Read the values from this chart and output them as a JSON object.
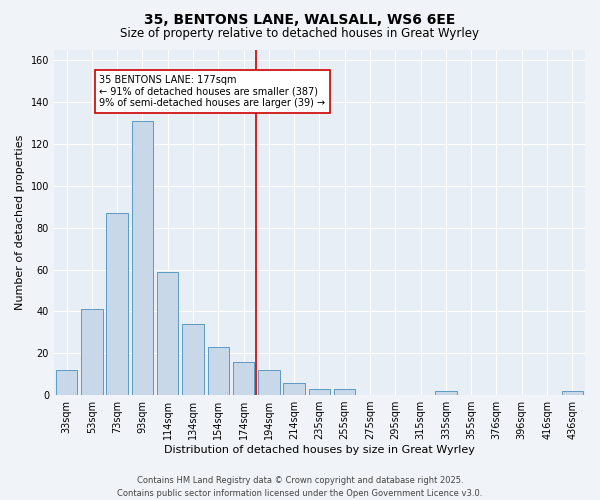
{
  "title": "35, BENTONS LANE, WALSALL, WS6 6EE",
  "subtitle": "Size of property relative to detached houses in Great Wyrley",
  "xlabel": "Distribution of detached houses by size in Great Wyrley",
  "ylabel": "Number of detached properties",
  "categories": [
    "33sqm",
    "53sqm",
    "73sqm",
    "93sqm",
    "114sqm",
    "134sqm",
    "154sqm",
    "174sqm",
    "194sqm",
    "214sqm",
    "235sqm",
    "255sqm",
    "275sqm",
    "295sqm",
    "315sqm",
    "335sqm",
    "355sqm",
    "376sqm",
    "396sqm",
    "416sqm",
    "436sqm"
  ],
  "values": [
    12,
    41,
    87,
    131,
    59,
    34,
    23,
    16,
    12,
    6,
    3,
    3,
    0,
    0,
    0,
    2,
    0,
    0,
    0,
    0,
    2
  ],
  "bar_color": "#c8d8e8",
  "bar_edge_color": "#5a9bc4",
  "vline_color": "#cc0000",
  "annotation_text": "35 BENTONS LANE: 177sqm\n← 91% of detached houses are smaller (387)\n9% of semi-detached houses are larger (39) →",
  "annotation_box_color": "#ffffff",
  "annotation_box_edge": "#cc0000",
  "ylim": [
    0,
    165
  ],
  "yticks": [
    0,
    20,
    40,
    60,
    80,
    100,
    120,
    140,
    160
  ],
  "bg_color": "#e8eef5",
  "fig_bg_color": "#f0f4f8",
  "footer": "Contains HM Land Registry data © Crown copyright and database right 2025.\nContains public sector information licensed under the Open Government Licence v3.0.",
  "title_fontsize": 10,
  "subtitle_fontsize": 8.5,
  "axis_label_fontsize": 8,
  "tick_fontsize": 7,
  "footer_fontsize": 6,
  "annotation_fontsize": 7
}
